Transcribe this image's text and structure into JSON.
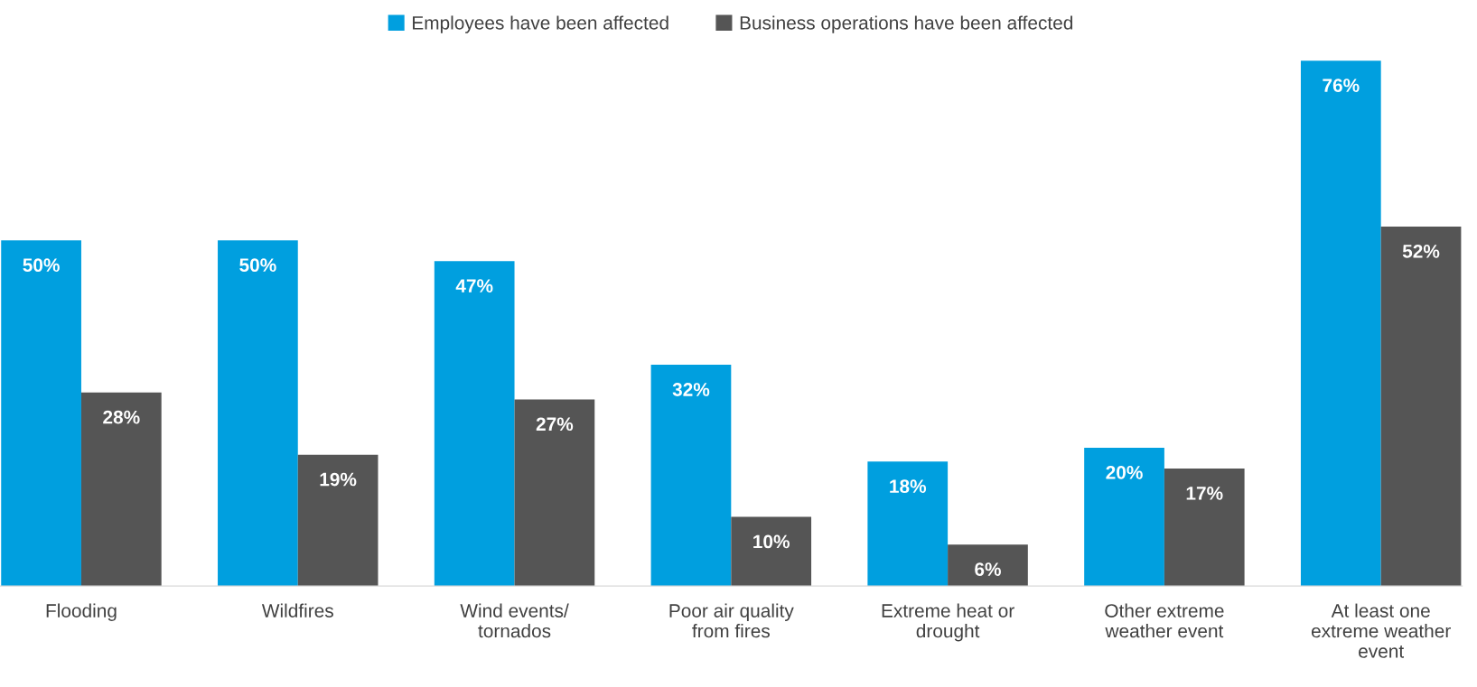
{
  "chart_data": {
    "type": "bar",
    "categories": [
      "Flooding",
      "Wildfires",
      "Wind events/\ntornados",
      "Poor air quality\nfrom fires",
      "Extreme heat or\ndrought",
      "Other extreme\nweather event",
      "At least one\nextreme weather\nevent"
    ],
    "series": [
      {
        "name": "Employees have been affected",
        "color": "#009fdf",
        "values": [
          50,
          50,
          47,
          32,
          18,
          20,
          76
        ],
        "value_labels": [
          "50%",
          "50%",
          "47%",
          "32%",
          "18%",
          "20%",
          "76%"
        ]
      },
      {
        "name": "Business operations have been affected",
        "color": "#555555",
        "values": [
          28,
          19,
          27,
          10,
          6,
          17,
          52
        ],
        "value_labels": [
          "28%",
          "19%",
          "27%",
          "10%",
          "6%",
          "17%",
          "52%"
        ]
      }
    ],
    "legend": "top",
    "grid": false
  }
}
